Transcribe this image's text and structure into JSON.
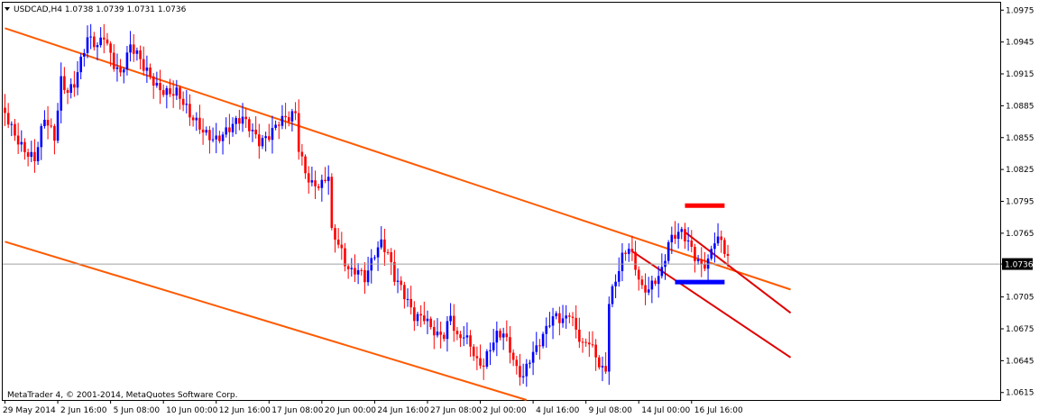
{
  "window": {
    "symbol_line": "USDCAD,H4  1.0738 1.0739 1.0731 1.0736",
    "copyright": "MetaTrader 4, © 2001-2014, MetaQuotes Software Corp.",
    "current_price_label": "1.0736"
  },
  "colors": {
    "background": "#ffffff",
    "frame": "#000000",
    "bull": "#0000ff",
    "bear": "#ff0000",
    "channel_outer": "#ff5a00",
    "channel_inner": "#e00000",
    "resistance_marker": "#ff0000",
    "support_marker": "#0000ff",
    "price_line": "#a0a0a0"
  },
  "chart_data": {
    "type": "candlestick",
    "symbol": "USDCAD",
    "timeframe": "H4",
    "ylim": [
      1.0608,
      1.0982
    ],
    "y_ticks": [
      "1.0975",
      "1.0945",
      "1.0915",
      "1.0885",
      "1.0855",
      "1.0825",
      "1.0795",
      "1.0765",
      "1.0736",
      "1.0705",
      "1.0675",
      "1.0645",
      "1.0615"
    ],
    "x_labels": [
      "29 May 2014",
      "2 Jun 16:00",
      "5 Jun 08:00",
      "10 Jun 00:00",
      "12 Jun 16:00",
      "17 Jun 08:00",
      "20 Jun 00:00",
      "24 Jun 16:00",
      "27 Jun 08:00",
      "2 Jul 00:00",
      "4 Jul 16:00",
      "9 Jul 08:00",
      "14 Jul 00:00",
      "16 Jul 16:00"
    ],
    "x_label_bar_index": [
      0,
      16,
      32,
      48,
      64,
      80,
      96,
      112,
      128,
      144,
      160,
      176,
      192,
      208
    ],
    "bar_count": 220,
    "current_price": 1.0736,
    "close_path": [
      [
        0,
        1.0878
      ],
      [
        6,
        1.0845
      ],
      [
        9,
        1.0832
      ],
      [
        12,
        1.087
      ],
      [
        15,
        1.0855
      ],
      [
        17,
        1.0912
      ],
      [
        19,
        1.0902
      ],
      [
        21,
        1.0908
      ],
      [
        25,
        1.0945
      ],
      [
        28,
        1.0938
      ],
      [
        30,
        1.0952
      ],
      [
        33,
        1.0928
      ],
      [
        35,
        1.0918
      ],
      [
        38,
        1.094
      ],
      [
        40,
        1.093
      ],
      [
        42,
        1.0918
      ],
      [
        46,
        1.0905
      ],
      [
        52,
        1.0898
      ],
      [
        56,
        1.0872
      ],
      [
        60,
        1.0862
      ],
      [
        64,
        1.0857
      ],
      [
        68,
        1.0862
      ],
      [
        72,
        1.087
      ],
      [
        75,
        1.0862
      ],
      [
        77,
        1.0855
      ],
      [
        80,
        1.086
      ],
      [
        83,
        1.0868
      ],
      [
        86,
        1.087
      ],
      [
        88,
        1.0876
      ],
      [
        89,
        1.0845
      ],
      [
        91,
        1.0825
      ],
      [
        93,
        1.0815
      ],
      [
        96,
        1.0812
      ],
      [
        98,
        1.0818
      ],
      [
        99,
        1.0762
      ],
      [
        101,
        1.0752
      ],
      [
        103,
        1.0735
      ],
      [
        105,
        1.073
      ],
      [
        107,
        1.0735
      ],
      [
        109,
        1.0726
      ],
      [
        112,
        1.0745
      ],
      [
        114,
        1.0752
      ],
      [
        116,
        1.0742
      ],
      [
        118,
        1.0722
      ],
      [
        120,
        1.0716
      ],
      [
        122,
        1.0705
      ],
      [
        124,
        1.069
      ],
      [
        127,
        1.0685
      ],
      [
        129,
        1.0672
      ],
      [
        131,
        1.0665
      ],
      [
        133,
        1.0668
      ],
      [
        135,
        1.069
      ],
      [
        137,
        1.067
      ],
      [
        139,
        1.0673
      ],
      [
        141,
        1.066
      ],
      [
        143,
        1.064
      ],
      [
        145,
        1.0637
      ],
      [
        147,
        1.0655
      ],
      [
        149,
        1.067
      ],
      [
        151,
        1.0675
      ],
      [
        153,
        1.066
      ],
      [
        155,
        1.0638
      ],
      [
        157,
        1.0628
      ],
      [
        159,
        1.0643
      ],
      [
        161,
        1.0653
      ],
      [
        163,
        1.0668
      ],
      [
        165,
        1.0685
      ],
      [
        167,
        1.0692
      ],
      [
        169,
        1.0685
      ],
      [
        171,
        1.069
      ],
      [
        173,
        1.067
      ],
      [
        175,
        1.0655
      ],
      [
        177,
        1.0662
      ],
      [
        179,
        1.065
      ],
      [
        181,
        1.064
      ],
      [
        182,
        1.064
      ],
      [
        183,
        1.0705
      ],
      [
        185,
        1.0722
      ],
      [
        187,
        1.074
      ],
      [
        189,
        1.0748
      ],
      [
        191,
        1.073
      ],
      [
        193,
        1.0712
      ],
      [
        195,
        1.0716
      ],
      [
        197,
        1.0725
      ],
      [
        199,
        1.0732
      ],
      [
        201,
        1.0755
      ],
      [
        203,
        1.076
      ],
      [
        205,
        1.0762
      ],
      [
        207,
        1.0755
      ],
      [
        209,
        1.0745
      ],
      [
        211,
        1.0738
      ],
      [
        213,
        1.0742
      ],
      [
        215,
        1.076
      ],
      [
        217,
        1.0755
      ],
      [
        219,
        1.0736
      ]
    ],
    "trendlines": [
      {
        "role": "channel-upper",
        "color": "#ff5a00",
        "from": [
          0,
          1.0958
        ],
        "to": [
          238,
          1.0712
        ]
      },
      {
        "role": "channel-lower",
        "color": "#ff5a00",
        "from": [
          0,
          1.0757
        ],
        "to": [
          158,
          1.0608
        ]
      },
      {
        "role": "inner-upper",
        "color": "#e00000",
        "from": [
          206,
          1.0766
        ],
        "to": [
          238,
          1.069
        ]
      },
      {
        "role": "inner-lower",
        "color": "#e00000",
        "from": [
          190,
          1.0748
        ],
        "to": [
          238,
          1.0648
        ]
      }
    ],
    "markers": [
      {
        "role": "resistance",
        "color": "#ff0000",
        "from": [
          206,
          1.0791
        ],
        "to": [
          218,
          1.0791
        ]
      },
      {
        "role": "support",
        "color": "#0000ff",
        "from": [
          203,
          1.0719
        ],
        "to": [
          218,
          1.0719
        ]
      }
    ]
  }
}
